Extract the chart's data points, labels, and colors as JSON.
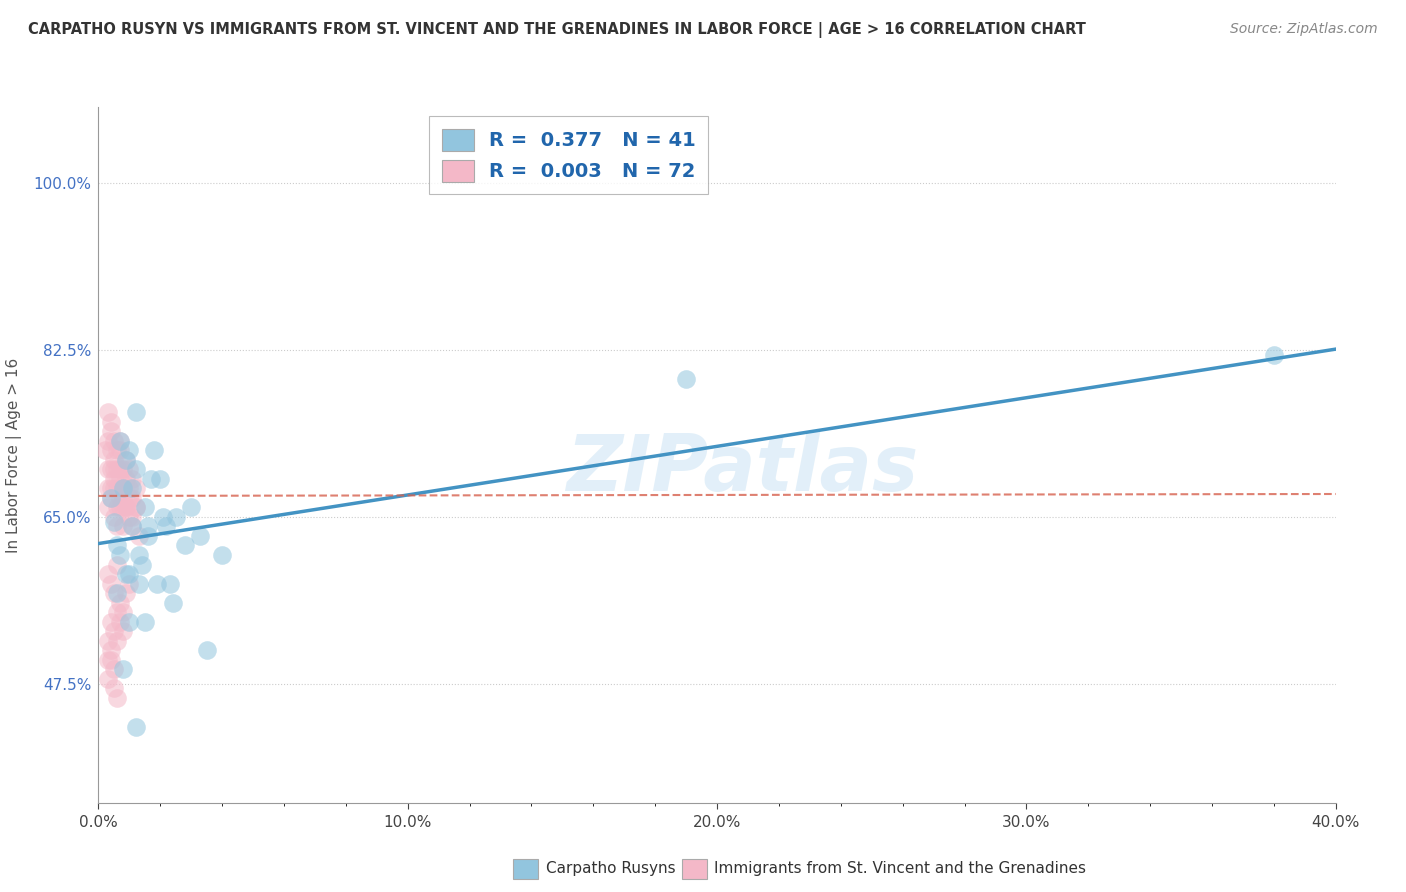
{
  "title": "CARPATHO RUSYN VS IMMIGRANTS FROM ST. VINCENT AND THE GRENADINES IN LABOR FORCE | AGE > 16 CORRELATION CHART",
  "source": "Source: ZipAtlas.com",
  "ylabel": "In Labor Force | Age > 16",
  "xlim": [
    0.0,
    0.4
  ],
  "ylim": [
    0.35,
    1.08
  ],
  "xtick_labels": [
    "0.0%",
    "10.0%",
    "20.0%",
    "30.0%",
    "40.0%"
  ],
  "xtick_vals": [
    0.0,
    0.1,
    0.2,
    0.3,
    0.4
  ],
  "ytick_labels": [
    "47.5%",
    "65.0%",
    "82.5%",
    "100.0%"
  ],
  "ytick_vals": [
    0.475,
    0.65,
    0.825,
    1.0
  ],
  "blue_color": "#92c5de",
  "pink_color": "#f4b8c8",
  "trend_blue_color": "#4393c3",
  "trend_pink_color": "#d6604d",
  "legend_label_blue": "R =  0.377   N = 41",
  "legend_label_pink": "R =  0.003   N = 72",
  "legend_bottom_blue": "Carpatho Rusyns",
  "legend_bottom_pink": "Immigrants from St. Vincent and the Grenadines",
  "watermark": "ZIPatlas",
  "blue_trend_x": [
    0.0,
    0.4
  ],
  "blue_trend_y": [
    0.622,
    0.826
  ],
  "pink_trend_x": [
    0.0,
    0.4
  ],
  "pink_trend_y": [
    0.672,
    0.674
  ],
  "blue_scatter_x": [
    0.004,
    0.005,
    0.006,
    0.007,
    0.007,
    0.008,
    0.009,
    0.009,
    0.01,
    0.01,
    0.011,
    0.011,
    0.012,
    0.012,
    0.013,
    0.013,
    0.014,
    0.015,
    0.015,
    0.016,
    0.016,
    0.017,
    0.018,
    0.019,
    0.02,
    0.021,
    0.022,
    0.023,
    0.024,
    0.025,
    0.028,
    0.03,
    0.033,
    0.035,
    0.04,
    0.19,
    0.38,
    0.006,
    0.008,
    0.01,
    0.012
  ],
  "blue_scatter_y": [
    0.67,
    0.645,
    0.62,
    0.61,
    0.73,
    0.68,
    0.59,
    0.71,
    0.72,
    0.59,
    0.64,
    0.68,
    0.7,
    0.76,
    0.58,
    0.61,
    0.6,
    0.66,
    0.54,
    0.63,
    0.64,
    0.69,
    0.72,
    0.58,
    0.69,
    0.65,
    0.64,
    0.58,
    0.56,
    0.65,
    0.62,
    0.66,
    0.63,
    0.51,
    0.61,
    0.795,
    0.82,
    0.57,
    0.49,
    0.54,
    0.43
  ],
  "pink_scatter_x": [
    0.002,
    0.003,
    0.003,
    0.003,
    0.003,
    0.004,
    0.004,
    0.004,
    0.004,
    0.004,
    0.005,
    0.005,
    0.005,
    0.005,
    0.005,
    0.006,
    0.006,
    0.006,
    0.006,
    0.007,
    0.007,
    0.007,
    0.007,
    0.007,
    0.008,
    0.008,
    0.008,
    0.008,
    0.009,
    0.009,
    0.009,
    0.01,
    0.01,
    0.01,
    0.011,
    0.011,
    0.011,
    0.012,
    0.012,
    0.013,
    0.003,
    0.004,
    0.005,
    0.006,
    0.007,
    0.008,
    0.009,
    0.01,
    0.011,
    0.012,
    0.003,
    0.004,
    0.005,
    0.006,
    0.007,
    0.008,
    0.009,
    0.01,
    0.003,
    0.004,
    0.005,
    0.006,
    0.007,
    0.008,
    0.003,
    0.004,
    0.005,
    0.006,
    0.003,
    0.004,
    0.005,
    0.006
  ],
  "pink_scatter_y": [
    0.72,
    0.7,
    0.68,
    0.73,
    0.76,
    0.7,
    0.72,
    0.68,
    0.75,
    0.74,
    0.7,
    0.69,
    0.71,
    0.68,
    0.73,
    0.7,
    0.66,
    0.72,
    0.68,
    0.7,
    0.66,
    0.69,
    0.72,
    0.73,
    0.67,
    0.7,
    0.66,
    0.64,
    0.69,
    0.71,
    0.66,
    0.65,
    0.68,
    0.7,
    0.67,
    0.64,
    0.69,
    0.66,
    0.68,
    0.63,
    0.66,
    0.67,
    0.65,
    0.64,
    0.67,
    0.68,
    0.66,
    0.67,
    0.65,
    0.66,
    0.59,
    0.58,
    0.57,
    0.6,
    0.56,
    0.55,
    0.57,
    0.58,
    0.52,
    0.54,
    0.53,
    0.55,
    0.54,
    0.53,
    0.5,
    0.51,
    0.49,
    0.52,
    0.48,
    0.5,
    0.47,
    0.46
  ]
}
